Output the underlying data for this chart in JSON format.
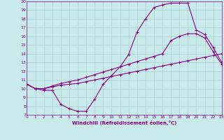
{
  "xlabel": "Windchill (Refroidissement éolien,°C)",
  "xlim": [
    0,
    23
  ],
  "ylim": [
    7,
    20
  ],
  "xticks": [
    0,
    1,
    2,
    3,
    4,
    5,
    6,
    7,
    8,
    9,
    10,
    11,
    12,
    13,
    14,
    15,
    16,
    17,
    18,
    19,
    20,
    21,
    22,
    23
  ],
  "yticks": [
    7,
    8,
    9,
    10,
    11,
    12,
    13,
    14,
    15,
    16,
    17,
    18,
    19,
    20
  ],
  "bg_color": "#c8eaea",
  "line_color": "#880088",
  "grid_color": "#aacccc",
  "line1_x": [
    0,
    1,
    2,
    3,
    4,
    5,
    6,
    7,
    8,
    9,
    10,
    11,
    12,
    13,
    14,
    15,
    16,
    17,
    18,
    19,
    20,
    21,
    22,
    23
  ],
  "line1_y": [
    10.5,
    10.0,
    9.8,
    9.8,
    8.2,
    7.7,
    7.4,
    7.4,
    8.8,
    10.5,
    11.5,
    12.5,
    13.9,
    16.5,
    18.0,
    19.3,
    19.6,
    19.8,
    19.8,
    19.8,
    16.7,
    16.2,
    14.7,
    13.0
  ],
  "line2_x": [
    0,
    1,
    2,
    3,
    4,
    5,
    6,
    7,
    8,
    9,
    10,
    11,
    12,
    13,
    14,
    15,
    16,
    17,
    18,
    19,
    20,
    21,
    22,
    23
  ],
  "line2_y": [
    10.5,
    10.0,
    10.0,
    10.2,
    10.4,
    10.5,
    10.6,
    10.8,
    11.0,
    11.2,
    11.4,
    11.6,
    11.8,
    12.0,
    12.2,
    12.4,
    12.6,
    12.8,
    13.0,
    13.2,
    13.4,
    13.6,
    13.8,
    14.0
  ],
  "line3_x": [
    0,
    1,
    2,
    3,
    4,
    5,
    6,
    7,
    8,
    9,
    10,
    11,
    12,
    13,
    14,
    15,
    16,
    17,
    18,
    19,
    20,
    21,
    22,
    23
  ],
  "line3_y": [
    10.5,
    10.0,
    10.0,
    10.3,
    10.6,
    10.8,
    11.0,
    11.3,
    11.6,
    11.9,
    12.2,
    12.5,
    12.8,
    13.1,
    13.4,
    13.7,
    14.0,
    15.5,
    16.0,
    16.3,
    16.3,
    15.8,
    14.2,
    12.8
  ]
}
